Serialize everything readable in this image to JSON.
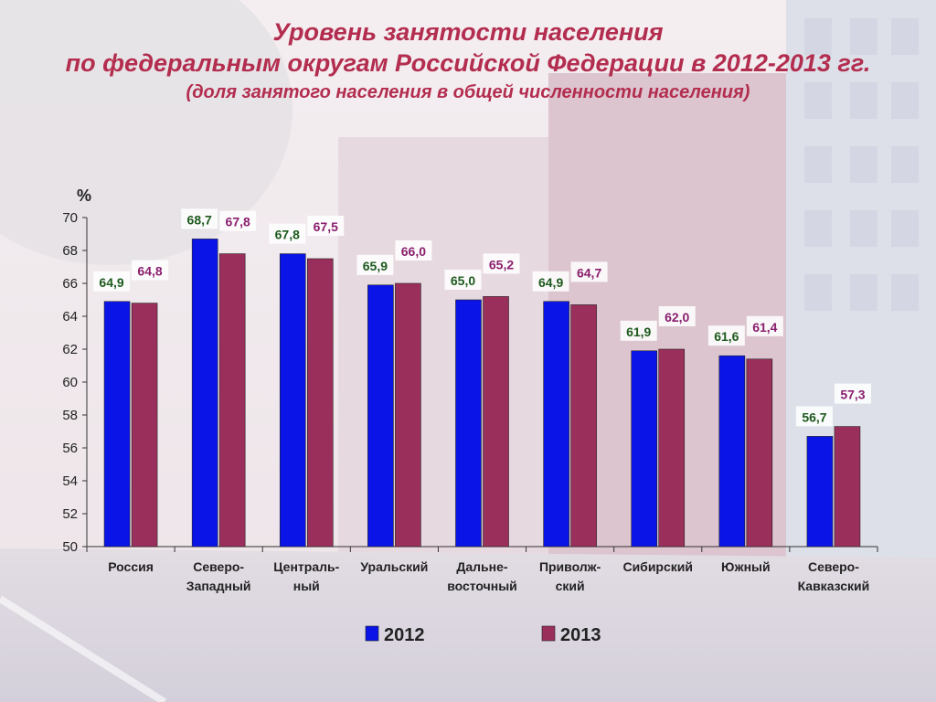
{
  "title": {
    "line1": "Уровень занятости населения",
    "line2": "по федеральным округам Российской Федерации в 2012-2013 гг.",
    "line3": "(доля занятого населения в общей численности населения)"
  },
  "colors": {
    "title": "#b32d4f",
    "series_2012": "#0a14e6",
    "series_2013": "#9b2f5c",
    "label_2012": "#1d5a1d",
    "label_2013": "#8a1f6e"
  },
  "chart_data": {
    "type": "bar",
    "ylabel": "%",
    "ylim": [
      50,
      70
    ],
    "yticks": [
      50,
      52,
      54,
      56,
      58,
      60,
      62,
      64,
      66,
      68,
      70
    ],
    "categories": [
      [
        "Россия"
      ],
      [
        "Северо-",
        "Западный"
      ],
      [
        "Централь-",
        "ный"
      ],
      [
        "Уральский"
      ],
      [
        "Дальне-",
        "восточный"
      ],
      [
        "Приволж-",
        "ский"
      ],
      [
        "Сибирский"
      ],
      [
        "Южный"
      ],
      [
        "Северо-",
        "Кавказский"
      ]
    ],
    "series": [
      {
        "name": "2012",
        "values": [
          64.9,
          68.7,
          67.8,
          65.9,
          65.0,
          64.9,
          61.9,
          61.6,
          56.7
        ],
        "labels": [
          "64,9",
          "68,7",
          "67,8",
          "65,9",
          "65,0",
          "64,9",
          "61,9",
          "61,6",
          "56,7"
        ]
      },
      {
        "name": "2013",
        "values": [
          64.8,
          67.8,
          67.5,
          66.0,
          65.2,
          64.7,
          62.0,
          61.4,
          57.3
        ],
        "labels": [
          "64,8",
          "67,8",
          "67,5",
          "66,0",
          "65,2",
          "64,7",
          "62,0",
          "61,4",
          "57,3"
        ]
      }
    ],
    "legend_position": "bottom-center",
    "grid": false
  }
}
